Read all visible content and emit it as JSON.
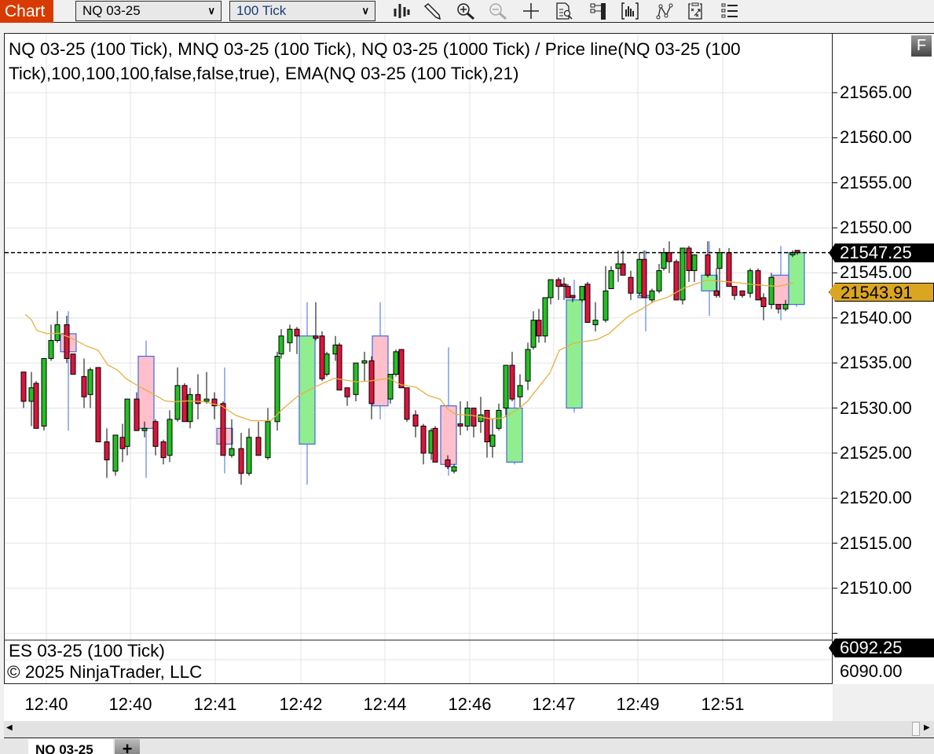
{
  "toolbar": {
    "chart_label": "Chart",
    "instrument": "NQ 03-25",
    "interval": "100 Tick",
    "icons": [
      "chart-style-icon",
      "draw-pencil-icon",
      "zoom-in-icon",
      "zoom-out-icon",
      "crosshair-icon",
      "data-box-icon",
      "panel-properties-icon",
      "bar-template-icon",
      "strategy-icon",
      "chart-trader-icon",
      "object-list-icon"
    ]
  },
  "panel": {
    "title": "NQ 03-25 (100 Tick), MNQ 03-25 (100 Tick), NQ 03-25 (1000 Tick) / Price line(NQ 03-25 (100 Tick),100,100,100,false,false,true), EMA(NQ 03-25 (100 Tick),21)",
    "f_button": "F",
    "es_title": "ES 03-25 (100 Tick)",
    "copyright": "© 2025 NinjaTrader, LLC"
  },
  "price_axis": [
    "21565.00",
    "21560.00",
    "21555.00",
    "21550.00",
    "21545.00",
    "21540.00",
    "21535.00",
    "21530.00",
    "21525.00",
    "21520.00",
    "21515.00",
    "21510.00"
  ],
  "badges": {
    "last_price": "21547.25",
    "ema": "21543.91",
    "es_last": "6092.25",
    "es_axis_label": "6090.00"
  },
  "time_axis": [
    "12:40",
    "12:40",
    "12:41",
    "12:42",
    "12:44",
    "12:46",
    "12:47",
    "12:49",
    "12:51"
  ],
  "tabs": {
    "active": "NQ 03-25",
    "add": "+"
  },
  "colors": {
    "up": "#22c022",
    "down": "#dc143c",
    "big_up": "#90ee90",
    "big_down": "#ffc0cb",
    "big_outline": "#4169e1",
    "ema": "#e5b040",
    "accent": "#d83b01",
    "last_price_badge": "#000000",
    "ema_badge": "#daa520"
  },
  "chart_data": {
    "type": "candlestick",
    "ylim": [
      21505,
      21568
    ],
    "last_price": 21547.25,
    "series_100_tick": [
      [
        21534.0,
        21534.0,
        21530.0,
        21530.75
      ],
      [
        21530.75,
        21534.0,
        21528.0,
        21532.25
      ],
      [
        21532.75,
        21533.0,
        21527.75,
        21527.75
      ],
      [
        21528.0,
        21535.5,
        21527.5,
        21535.5
      ],
      [
        21535.5,
        21539.25,
        21535.25,
        21537.5
      ],
      [
        21537.5,
        21540.75,
        21537.25,
        21539.25
      ],
      [
        21539.25,
        21540.25,
        21535.0,
        21535.5
      ],
      [
        21536.0,
        21536.0,
        21533.75,
        21533.75
      ],
      [
        21533.5,
        21535.5,
        21530.0,
        21531.25
      ],
      [
        21531.5,
        21534.5,
        21530.0,
        21534.25
      ],
      [
        21534.5,
        21534.5,
        21526.25,
        21526.25
      ],
      [
        21526.25,
        21527.75,
        21522.25,
        21524.25
      ],
      [
        21523.0,
        21527.0,
        21522.5,
        21527.0
      ],
      [
        21526.75,
        21528.25,
        21524.0,
        21525.5
      ],
      [
        21525.75,
        21531.0,
        21524.75,
        21531.0
      ],
      [
        21531.0,
        21531.75,
        21527.5,
        21527.5
      ],
      [
        21527.5,
        21528.5,
        21526.75,
        21527.75
      ],
      [
        21528.5,
        21528.75,
        21524.75,
        21525.75
      ],
      [
        21526.25,
        21526.5,
        21523.75,
        21524.5
      ],
      [
        21524.75,
        21529.75,
        21524.0,
        21528.75
      ],
      [
        21528.75,
        21534.5,
        21528.5,
        21532.5
      ],
      [
        21532.5,
        21532.75,
        21528.5,
        21528.5
      ],
      [
        21528.5,
        21532.25,
        21527.75,
        21531.5
      ],
      [
        21531.5,
        21533.75,
        21528.75,
        21530.5
      ],
      [
        21530.75,
        21534.0,
        21530.5,
        21531.0
      ],
      [
        21531.0,
        21531.75,
        21528.75,
        21530.25
      ],
      [
        21530.5,
        21530.75,
        21524.75,
        21524.75
      ],
      [
        21524.75,
        21528.75,
        21524.5,
        21525.5
      ],
      [
        21525.5,
        21527.25,
        21521.5,
        21522.75
      ],
      [
        21522.75,
        21527.75,
        21522.5,
        21526.75
      ],
      [
        21526.75,
        21528.5,
        21524.75,
        21524.75
      ],
      [
        21524.5,
        21530.0,
        21524.25,
        21528.5
      ],
      [
        21528.5,
        21536.25,
        21527.5,
        21535.75
      ],
      [
        21536.0,
        21538.75,
        21535.5,
        21538.0
      ],
      [
        21537.25,
        21539.25,
        21536.25,
        21538.75
      ],
      [
        21538.75,
        21539.0,
        21536.0,
        21538.0
      ],
      [
        21538.0,
        21541.75,
        21537.5,
        21537.75
      ],
      [
        21538.0,
        21538.5,
        21533.0,
        21533.25
      ],
      [
        21533.75,
        21536.25,
        21533.5,
        21536.0
      ],
      [
        21536.0,
        21538.0,
        21535.25,
        21537.0
      ],
      [
        21537.0,
        21537.25,
        21532.0,
        21532.0
      ],
      [
        21532.25,
        21532.25,
        21530.25,
        21531.25
      ],
      [
        21531.5,
        21535.0,
        21530.75,
        21535.0
      ],
      [
        21535.0,
        21536.25,
        21533.0,
        21535.25
      ],
      [
        21535.25,
        21535.75,
        21528.75,
        21530.5
      ],
      [
        21531.0,
        21533.75,
        21530.5,
        21533.75
      ],
      [
        21533.75,
        21536.5,
        21533.5,
        21536.25
      ],
      [
        21536.5,
        21536.5,
        21532.25,
        21532.25
      ],
      [
        21532.25,
        21532.25,
        21528.5,
        21528.75
      ],
      [
        21529.25,
        21529.75,
        21526.75,
        21528.0
      ],
      [
        21528.0,
        21528.25,
        21523.75,
        21525.0
      ],
      [
        21525.0,
        21527.75,
        21524.25,
        21527.5
      ],
      [
        21527.75,
        21528.0,
        21524.0,
        21524.0
      ],
      [
        21524.25,
        21524.75,
        21523.25,
        21523.5
      ],
      [
        21523.0,
        21523.75,
        21522.75,
        21523.5
      ],
      [
        21528.25,
        21530.75,
        21527.0,
        21528.0
      ],
      [
        21528.0,
        21530.75,
        21527.5,
        21530.0
      ],
      [
        21530.0,
        21530.0,
        21526.75,
        21528.0
      ],
      [
        21528.5,
        21531.25,
        21527.25,
        21529.25
      ],
      [
        21529.75,
        21529.75,
        21524.5,
        21526.25
      ],
      [
        21525.75,
        21528.75,
        21524.5,
        21527.0
      ],
      [
        21527.75,
        21530.5,
        21527.5,
        21529.75
      ],
      [
        21530.0,
        21534.75,
        21529.0,
        21534.75
      ],
      [
        21534.75,
        21536.25,
        21530.75,
        21531.0
      ],
      [
        21531.25,
        21533.75,
        21530.0,
        21532.5
      ],
      [
        21533.0,
        21537.25,
        21532.0,
        21536.5
      ],
      [
        21536.75,
        21540.75,
        21536.5,
        21539.75
      ],
      [
        21539.75,
        21541.0,
        21537.25,
        21538.0
      ],
      [
        21538.0,
        21542.25,
        21537.25,
        21542.25
      ],
      [
        21542.25,
        21544.25,
        21541.5,
        21544.25
      ],
      [
        21544.25,
        21544.5,
        21542.0,
        21543.5
      ],
      [
        21543.75,
        21544.5,
        21542.0,
        21543.5
      ],
      [
        21543.5,
        21543.75,
        21542.25,
        21542.25
      ],
      [
        21542.5,
        21542.5,
        21541.75,
        21542.25
      ],
      [
        21542.0,
        21543.5,
        21541.75,
        21543.5
      ],
      [
        21543.75,
        21544.0,
        21539.5,
        21539.5
      ],
      [
        21539.25,
        21541.75,
        21538.5,
        21539.75
      ],
      [
        21539.75,
        21545.75,
        21539.5,
        21543.0
      ],
      [
        21543.25,
        21545.75,
        21543.25,
        21545.25
      ],
      [
        21545.5,
        21547.5,
        21544.0,
        21546.0
      ],
      [
        21546.0,
        21547.5,
        21544.75,
        21544.75
      ],
      [
        21544.5,
        21545.25,
        21542.0,
        21542.75
      ],
      [
        21542.75,
        21547.25,
        21542.5,
        21546.5
      ],
      [
        21546.5,
        21547.5,
        21542.25,
        21542.25
      ],
      [
        21542.0,
        21543.25,
        21541.75,
        21543.0
      ],
      [
        21543.0,
        21546.0,
        21542.75,
        21545.25
      ],
      [
        21545.5,
        21547.75,
        21545.25,
        21547.25
      ],
      [
        21547.25,
        21548.5,
        21545.0,
        21546.25
      ],
      [
        21546.25,
        21546.5,
        21542.0,
        21542.0
      ],
      [
        21542.0,
        21547.75,
        21541.5,
        21547.75
      ],
      [
        21547.75,
        21548.0,
        21544.0,
        21545.25
      ],
      [
        21545.25,
        21547.0,
        21544.0,
        21547.0
      ],
      [
        21547.0,
        21548.5,
        21544.5,
        21544.75
      ],
      [
        21543.0,
        21545.5,
        21542.25,
        21542.5
      ],
      [
        21545.5,
        21547.75,
        21542.25,
        21547.25
      ],
      [
        21547.25,
        21547.75,
        21543.5,
        21543.5
      ],
      [
        21543.5,
        21543.5,
        21542.0,
        21542.5
      ],
      [
        21543.0,
        21543.0,
        21542.25,
        21542.5
      ],
      [
        21542.75,
        21545.5,
        21542.25,
        21545.25
      ],
      [
        21545.25,
        21545.5,
        21542.0,
        21542.0
      ],
      [
        21542.25,
        21542.75,
        21539.75,
        21541.25
      ],
      [
        21541.5,
        21545.0,
        21541.0,
        21544.5
      ],
      [
        21541.5,
        21541.5,
        21540.5,
        21541.0
      ],
      [
        21541.0,
        21542.0,
        21540.75,
        21541.5
      ],
      [
        21547.0,
        21547.5,
        21546.75,
        21547.25
      ],
      [
        21547.5,
        21547.5,
        21547.0,
        21547.25
      ]
    ],
    "series_1000_tick": [
      [
        21538.25,
        21540.75,
        21527.5,
        21536.25
      ],
      [
        21535.75,
        21537.5,
        21522.25,
        21527.75
      ],
      [
        21527.75,
        21534.5,
        21522.75,
        21526.0
      ],
      [
        21526.0,
        21541.75,
        21521.5,
        21538.0
      ],
      [
        21538.0,
        21541.75,
        21528.75,
        21530.25
      ],
      [
        21530.25,
        21536.75,
        21522.5,
        21523.75
      ],
      [
        21524.0,
        21531.25,
        21523.75,
        21530.0
      ],
      [
        21530.0,
        21544.25,
        21529.5,
        21542.0
      ],
      [
        21542.25,
        21547.5,
        21538.5,
        21542.5
      ],
      [
        21543.0,
        21548.5,
        21540.25,
        21544.75
      ],
      [
        21544.75,
        21548.0,
        21539.75,
        21541.5
      ],
      [
        21541.5,
        21547.5,
        21541.25,
        21547.25
      ]
    ],
    "ema_21": [
      21540.4,
      21539.8,
      21538.6,
      21538.25,
      21538.3,
      21537.8,
      21536.9,
      21536.4,
      21534.8,
      21534.2,
      21533.3,
      21532.5,
      21531.8,
      21530.8,
      21530.7,
      21530.8,
      21530.7,
      21530.2,
      21529.2,
      21528.6,
      21528.6,
      21529.9,
      21531.4,
      21532.3,
      21533.3,
      21533.1,
      21532.9,
      21533.0,
      21533.3,
      21532.6,
      21532.3,
      21531.4,
      21531.0,
      21529.9,
      21529.3,
      21529.2,
      21528.8,
      21528.9,
      21529.9,
      21530.8,
      21531.7,
      21533.9,
      21536.4,
      21537.2,
      21537.6,
      21538.25,
      21540.2,
      21540.9,
      21541.8,
      21542.3,
      21543.3,
      21544.2,
      21544.0,
      21543.7,
      21543.5,
      21543.9
    ]
  }
}
